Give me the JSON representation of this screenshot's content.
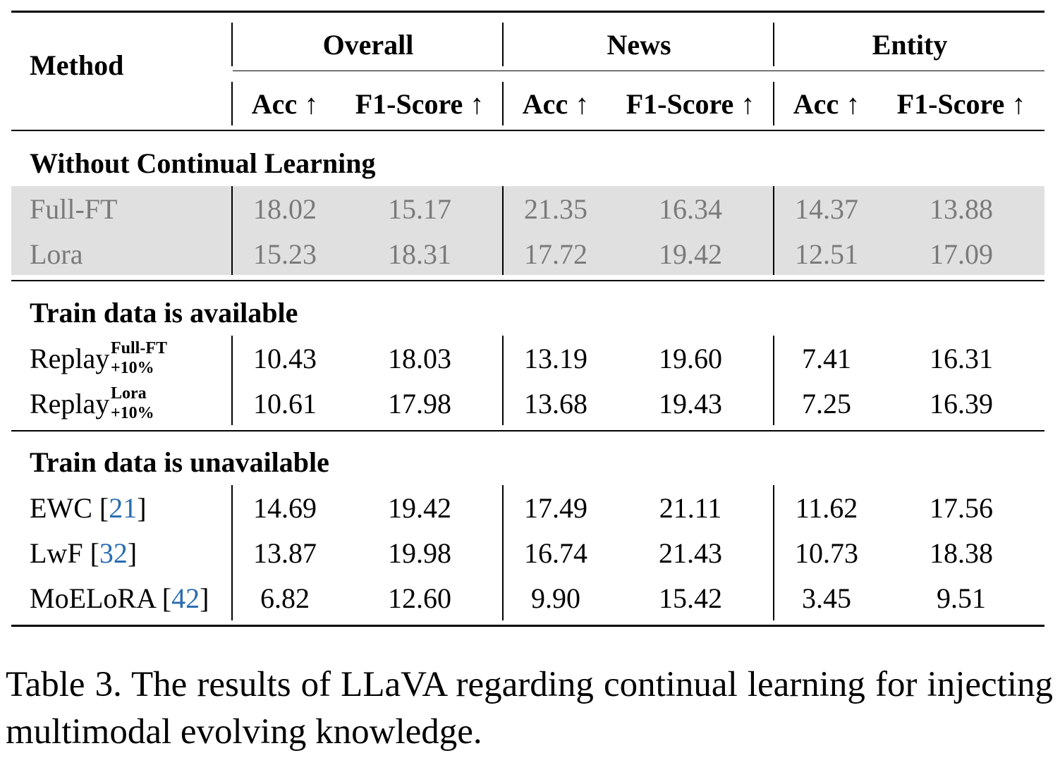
{
  "table": {
    "method_header": "Method",
    "groups": [
      {
        "name": "Overall",
        "metrics": [
          "Acc ↑",
          "F1-Score ↑"
        ]
      },
      {
        "name": "News",
        "metrics": [
          "Acc ↑",
          "F1-Score ↑"
        ]
      },
      {
        "name": "Entity",
        "metrics": [
          "Acc ↑",
          "F1-Score ↑"
        ]
      }
    ],
    "sections": [
      {
        "title": "Without Continual Learning",
        "rows": [
          {
            "method": "Full-FT",
            "values": [
              "18.02",
              "15.17",
              "21.35",
              "16.34",
              "14.37",
              "13.88"
            ]
          },
          {
            "method": "Lora",
            "values": [
              "15.23",
              "18.31",
              "17.72",
              "19.42",
              "12.51",
              "17.09"
            ]
          }
        ]
      },
      {
        "title": "Train data is available",
        "rows": [
          {
            "method": "Replay",
            "sup": "Full-FT",
            "sub": "+10%",
            "values": [
              "10.43",
              "18.03",
              "13.19",
              "19.60",
              "7.41",
              "16.31"
            ]
          },
          {
            "method": "Replay",
            "sup": "Lora",
            "sub": "+10%",
            "values": [
              "10.61",
              "17.98",
              "13.68",
              "19.43",
              "7.25",
              "16.39"
            ]
          }
        ]
      },
      {
        "title": "Train data is unavailable",
        "rows": [
          {
            "method": "EWC",
            "cite": "21",
            "values": [
              "14.69",
              "19.42",
              "17.49",
              "21.11",
              "11.62",
              "17.56"
            ]
          },
          {
            "method": "LwF",
            "cite": "32",
            "values": [
              "13.87",
              "19.98",
              "16.74",
              "21.43",
              "10.73",
              "18.38"
            ]
          },
          {
            "method": "MoELoRA",
            "cite": "42",
            "values": [
              "6.82",
              "12.60",
              "9.90",
              "15.42",
              "3.45",
              "9.51"
            ]
          }
        ]
      }
    ]
  },
  "caption": "Table 3. The results of LLaVA regarding continual learning for injecting multimodal evolving knowledge."
}
